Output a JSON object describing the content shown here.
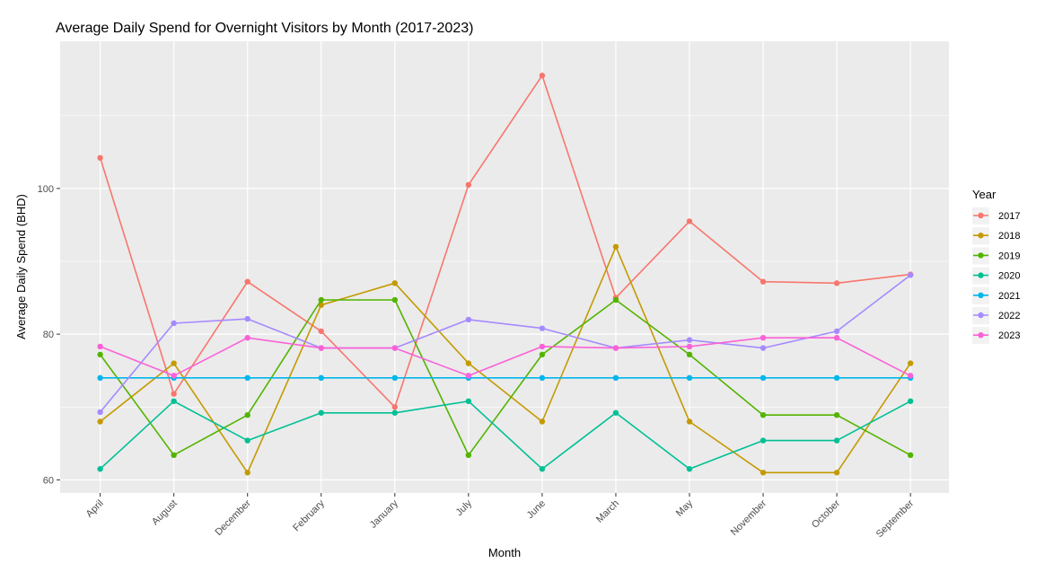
{
  "chart_data": {
    "type": "line",
    "title": "Average Daily Spend for Overnight Visitors by Month (2017-2023)",
    "xlabel": "Month",
    "ylabel": "Average Daily Spend (BHD)",
    "categories": [
      "April",
      "August",
      "December",
      "February",
      "January",
      "July",
      "June",
      "March",
      "May",
      "November",
      "October",
      "September"
    ],
    "ylim": [
      58.2,
      120.2
    ],
    "yticks": [
      60,
      80,
      100
    ],
    "grid": true,
    "legend": {
      "title": "Year",
      "position": "right"
    },
    "series": [
      {
        "name": "2017",
        "color": "#F8766D",
        "values": [
          104.2,
          71.8,
          87.2,
          80.4,
          70.0,
          100.5,
          115.5,
          85.0,
          95.5,
          87.2,
          87.0,
          88.2
        ]
      },
      {
        "name": "2018",
        "color": "#C49A00",
        "values": [
          68.0,
          76.0,
          61.0,
          84.0,
          87.0,
          76.0,
          68.0,
          92.0,
          68.0,
          61.0,
          61.0,
          76.0
        ]
      },
      {
        "name": "2019",
        "color": "#53B400",
        "values": [
          77.2,
          63.4,
          68.9,
          84.7,
          84.7,
          63.4,
          77.2,
          84.7,
          77.2,
          68.9,
          68.9,
          63.4
        ]
      },
      {
        "name": "2020",
        "color": "#00C094",
        "values": [
          61.5,
          70.8,
          65.4,
          69.2,
          69.2,
          70.8,
          61.5,
          69.2,
          61.5,
          65.4,
          65.4,
          70.8
        ]
      },
      {
        "name": "2021",
        "color": "#00B6EB",
        "values": [
          74.0,
          74.0,
          74.0,
          74.0,
          74.0,
          74.0,
          74.0,
          74.0,
          74.0,
          74.0,
          74.0,
          74.0
        ]
      },
      {
        "name": "2022",
        "color": "#A58AFF",
        "values": [
          69.3,
          81.5,
          82.1,
          78.1,
          78.1,
          82.0,
          80.8,
          78.1,
          79.2,
          78.1,
          80.4,
          88.1
        ]
      },
      {
        "name": "2023",
        "color": "#FB61D7",
        "values": [
          78.3,
          74.3,
          79.5,
          78.1,
          78.1,
          74.3,
          78.3,
          78.1,
          78.3,
          79.5,
          79.5,
          74.3
        ]
      }
    ]
  }
}
